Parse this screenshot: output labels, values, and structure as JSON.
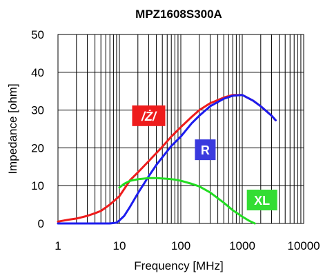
{
  "chart_data": {
    "type": "line",
    "title": "MPZ1608S300A",
    "xlabel": "Frequency [MHz]",
    "ylabel": "Impedance [ohm]",
    "x_scale": "log",
    "xlim": [
      1,
      10000
    ],
    "ylim": [
      0,
      50
    ],
    "x_ticks": [
      1,
      10,
      100,
      1000,
      10000
    ],
    "x_tick_labels": [
      "1",
      "10",
      "100",
      "1000",
      "10000"
    ],
    "y_ticks": [
      0,
      10,
      20,
      30,
      40,
      50
    ],
    "y_tick_labels": [
      "0",
      "10",
      "20",
      "30",
      "40",
      "50"
    ],
    "grid": true,
    "series": [
      {
        "name": "/Ż/",
        "color": "#ee1c1c",
        "label_color": "#ee1c1c",
        "x": [
          1,
          1.5,
          2,
          3,
          4,
          5,
          7,
          10,
          15,
          20,
          30,
          50,
          70,
          100,
          150,
          200,
          300,
          500,
          700,
          1000,
          1500,
          2000,
          3000,
          3500
        ],
        "y": [
          0.5,
          1,
          1.3,
          2,
          2.7,
          3.3,
          5,
          7.2,
          11.5,
          13.5,
          16.5,
          20.3,
          23,
          25.5,
          28.2,
          30,
          31.8,
          33.3,
          34,
          34,
          32.5,
          31,
          28.5,
          27.3
        ]
      },
      {
        "name": "R",
        "color": "#1c1cee",
        "label_color": "#3a3ade",
        "x": [
          1,
          3,
          5,
          7,
          9,
          10,
          12,
          15,
          20,
          30,
          40,
          50,
          70,
          100,
          150,
          200,
          300,
          500,
          700,
          1000,
          1500,
          2000,
          3000,
          3500
        ],
        "y": [
          0,
          0,
          0,
          0,
          0.2,
          0.8,
          2,
          4.5,
          8,
          12.5,
          15.5,
          17.5,
          20.5,
          23,
          26.5,
          28.5,
          31,
          33,
          33.8,
          34,
          32.5,
          31,
          28.5,
          27.3
        ]
      },
      {
        "name": "XL",
        "color": "#22dd22",
        "label_color": "#33dd33",
        "x": [
          10,
          12,
          15,
          20,
          30,
          40,
          60,
          80,
          100,
          150,
          200,
          300,
          500,
          700,
          1000,
          1300,
          1600
        ],
        "y": [
          9.5,
          10.5,
          11.3,
          11.7,
          12,
          12,
          11.8,
          11.6,
          11.3,
          10.5,
          9.8,
          8.2,
          5.5,
          3.5,
          1.8,
          0.7,
          0
        ]
      }
    ],
    "annotations": [
      {
        "series": "/Ż/",
        "text": "/Ż/",
        "at_x": 30,
        "at_y": 28.5
      },
      {
        "series": "R",
        "text": "R",
        "at_x": 250,
        "at_y": 19.5
      },
      {
        "series": "XL",
        "text": "XL",
        "at_x": 2100,
        "at_y": 6.2
      }
    ]
  }
}
